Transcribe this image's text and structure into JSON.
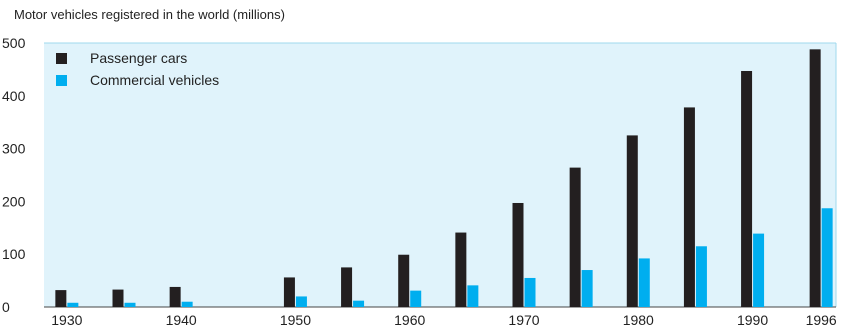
{
  "chart_data": {
    "type": "bar",
    "title": "Motor vehicles registered in the world (millions)",
    "xlabel": "",
    "ylabel": "",
    "ylim": [
      0,
      500
    ],
    "yticks": [
      0,
      100,
      200,
      300,
      400,
      500
    ],
    "x": [
      1930,
      1935,
      1940,
      1950,
      1955,
      1960,
      1965,
      1970,
      1975,
      1980,
      1985,
      1990,
      1996
    ],
    "xtick_labels": [
      {
        "x": 1930,
        "label": "1930"
      },
      {
        "x": 1940,
        "label": "1940"
      },
      {
        "x": 1950,
        "label": "1950"
      },
      {
        "x": 1960,
        "label": "1960"
      },
      {
        "x": 1970,
        "label": "1970"
      },
      {
        "x": 1980,
        "label": "1980"
      },
      {
        "x": 1990,
        "label": "1990"
      },
      {
        "x": 1996,
        "label": "1996"
      }
    ],
    "series": [
      {
        "name": "Passenger cars",
        "color": "#231f20",
        "values": [
          32,
          33,
          38,
          56,
          75,
          99,
          141,
          197,
          264,
          325,
          378,
          447,
          488
        ]
      },
      {
        "name": "Commercial vehicles",
        "color": "#00aeef",
        "values": [
          8,
          8,
          10,
          20,
          12,
          31,
          41,
          55,
          70,
          92,
          115,
          139,
          187
        ]
      }
    ],
    "legend": "top-left",
    "grid": false,
    "background": "#e0f3fb"
  }
}
